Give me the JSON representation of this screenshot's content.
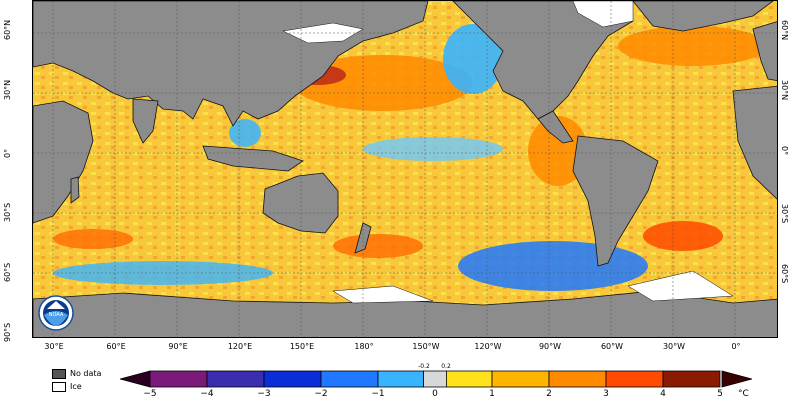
{
  "map": {
    "lat_labels_left": [
      "60°N",
      "30°N",
      "0°",
      "30°S",
      "60°S",
      "90°S"
    ],
    "lat_labels_right": [
      "60°N",
      "30°N",
      "0°",
      "30°S",
      "60°S"
    ],
    "lon_labels": [
      "30°E",
      "60°E",
      "90°E",
      "120°E",
      "150°E",
      "180°",
      "150°W",
      "120°W",
      "90°W",
      "60°W",
      "30°W",
      "0°"
    ],
    "colors": {
      "land": "#8c8c8c",
      "ice": "#ffffff",
      "ocean_neutral": "#f6d24a"
    }
  },
  "legend": {
    "no_data_label": "No data",
    "ice_label": "Ice",
    "no_data_color": "#555555",
    "ice_color": "#ffffff"
  },
  "colorbar": {
    "unit": "°C",
    "ticks": [
      "−5",
      "−4",
      "−3",
      "−2",
      "−1",
      "0",
      "1",
      "2",
      "3",
      "4",
      "5"
    ],
    "small_ticks": [
      "-0.2",
      "0.2"
    ],
    "colors": [
      "#4a0038",
      "#7a1a7a",
      "#3a2db0",
      "#0a2dd8",
      "#1f78ff",
      "#38b4ff",
      "#d8d8d8",
      "#ffe21a",
      "#ffb400",
      "#ff8a00",
      "#ff4a00",
      "#8a1a00"
    ]
  },
  "logo": {
    "text": "NOAA"
  }
}
